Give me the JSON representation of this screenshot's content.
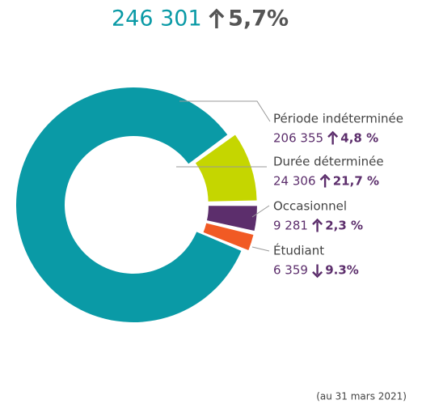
{
  "chart_data": {
    "type": "donut",
    "title": "246 301",
    "title_change": "5,7%",
    "title_change_direction": "up",
    "categories": [
      "Période indéterminée",
      "Durée déterminée",
      "Occasionnel",
      "Étudiant"
    ],
    "values": [
      206355,
      24306,
      9281,
      6359
    ],
    "value_labels": [
      "206 355",
      "24 306",
      "9 281",
      "6 359"
    ],
    "changes": [
      "4,8 %",
      "21,7 %",
      "2,3 %",
      "9.3%"
    ],
    "change_directions": [
      "up",
      "up",
      "up",
      "down"
    ],
    "colors": [
      "#0a9aa6",
      "#c5d600",
      "#5c2e6c",
      "#f15a24"
    ],
    "note": "(au 31 mars 2021)"
  }
}
